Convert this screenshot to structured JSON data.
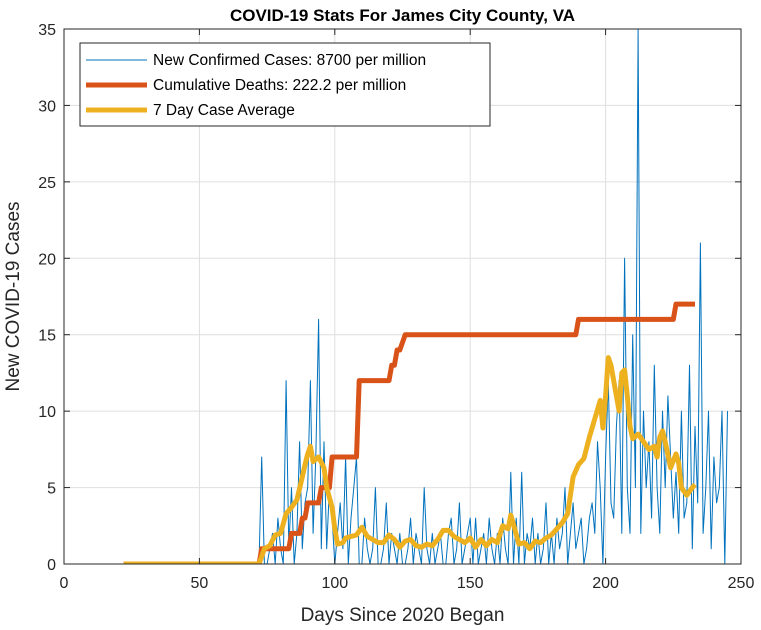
{
  "chart_data": {
    "type": "line",
    "title": "COVID-19 Stats For James City County, VA",
    "xlabel": "Days Since 2020 Began",
    "ylabel": "New COVID-19 Cases",
    "xlim": [
      0,
      250
    ],
    "ylim": [
      0,
      35
    ],
    "xticks": [
      0,
      50,
      100,
      150,
      200,
      250
    ],
    "yticks": [
      0,
      5,
      10,
      15,
      20,
      25,
      30,
      35
    ],
    "grid": true,
    "legend_position": "top-left",
    "series": [
      {
        "name": "New Confirmed Cases: 8700 per million",
        "color": "#0072BD",
        "line_width": "thin",
        "x_start": 22,
        "x_step": 1,
        "values": [
          0,
          0,
          0,
          0,
          0,
          0,
          0,
          0,
          0,
          0,
          0,
          0,
          0,
          0,
          0,
          0,
          0,
          0,
          0,
          0,
          0,
          0,
          0,
          0,
          0,
          0,
          0,
          0,
          0,
          0,
          0,
          0,
          0,
          0,
          0,
          0,
          0,
          0,
          0,
          0,
          0,
          0,
          0,
          0,
          0,
          0,
          0,
          0,
          0,
          0,
          0,
          7,
          0,
          0,
          1,
          2,
          0,
          3,
          1,
          0,
          12,
          1,
          5,
          0,
          2,
          8,
          1,
          4,
          5,
          12,
          2,
          7,
          16,
          1,
          8,
          1,
          5,
          3,
          0,
          2,
          4,
          1,
          7,
          0,
          3,
          5,
          7,
          0,
          0,
          3,
          1,
          0,
          1,
          5,
          0,
          0,
          1,
          4,
          0,
          2,
          1,
          0,
          2,
          0,
          0,
          1,
          3,
          0,
          2,
          1,
          0,
          5,
          1,
          0,
          2,
          0,
          1,
          2,
          0,
          0,
          2,
          3,
          0,
          1,
          4,
          0,
          1,
          2,
          3,
          0,
          3,
          0,
          1,
          2,
          0,
          3,
          1,
          0,
          2,
          0,
          3,
          1,
          0,
          6,
          0,
          3,
          0,
          6,
          0,
          2,
          1,
          3,
          0,
          2,
          0,
          1,
          4,
          0,
          2,
          0,
          3,
          1,
          2,
          5,
          0,
          2,
          4,
          1,
          2,
          3,
          0,
          1,
          3,
          4,
          2,
          8,
          5,
          0,
          7,
          12,
          4,
          3,
          9,
          12,
          2,
          20,
          5,
          2,
          15,
          5,
          35,
          2,
          10,
          5,
          8,
          3,
          13,
          5,
          2,
          10,
          5,
          11,
          7,
          3,
          6,
          2,
          10,
          3,
          4,
          13,
          1,
          9,
          4,
          21,
          2,
          5,
          10,
          1,
          7,
          4,
          5,
          10,
          0,
          10
        ]
      },
      {
        "name": "Cumulative Deaths: 222.2 per million",
        "color": "#D95319",
        "line_width": "thick",
        "steps": [
          [
            22,
            0
          ],
          [
            72,
            0
          ],
          [
            73,
            1
          ],
          [
            83,
            1
          ],
          [
            84,
            2
          ],
          [
            87,
            2
          ],
          [
            88,
            3
          ],
          [
            89,
            3
          ],
          [
            90,
            4
          ],
          [
            94,
            4
          ],
          [
            95,
            5
          ],
          [
            98,
            5
          ],
          [
            99,
            7
          ],
          [
            108,
            7
          ],
          [
            109,
            12
          ],
          [
            120,
            12
          ],
          [
            121,
            13
          ],
          [
            122,
            13
          ],
          [
            123,
            14
          ],
          [
            124,
            14
          ],
          [
            125,
            14.5
          ],
          [
            126,
            15
          ],
          [
            189,
            15
          ],
          [
            190,
            16
          ],
          [
            225,
            16
          ],
          [
            226,
            17
          ],
          [
            233,
            17
          ]
        ]
      },
      {
        "name": "7 Day Case Average",
        "color": "#EDB120",
        "line_width": "thick",
        "points": [
          [
            22,
            0
          ],
          [
            72,
            0
          ],
          [
            74,
            1
          ],
          [
            76,
            1.2
          ],
          [
            78,
            1.9
          ],
          [
            80,
            2.0
          ],
          [
            82,
            3.3
          ],
          [
            84,
            3.7
          ],
          [
            86,
            4.2
          ],
          [
            88,
            5.7
          ],
          [
            89,
            6.5
          ],
          [
            90,
            7.2
          ],
          [
            91,
            7.7
          ],
          [
            92,
            6.7
          ],
          [
            94,
            7.0
          ],
          [
            96,
            6.3
          ],
          [
            97,
            5.0
          ],
          [
            99,
            3.7
          ],
          [
            100,
            2.3
          ],
          [
            101,
            1.3
          ],
          [
            103,
            1.4
          ],
          [
            104,
            1.7
          ],
          [
            106,
            1.8
          ],
          [
            108,
            1.9
          ],
          [
            110,
            2.4
          ],
          [
            112,
            1.8
          ],
          [
            114,
            1.6
          ],
          [
            116,
            1.4
          ],
          [
            118,
            1.4
          ],
          [
            120,
            1.9
          ],
          [
            122,
            1.6
          ],
          [
            124,
            1.1
          ],
          [
            126,
            1.5
          ],
          [
            128,
            1.6
          ],
          [
            130,
            1.2
          ],
          [
            132,
            1.1
          ],
          [
            134,
            1.3
          ],
          [
            136,
            1.2
          ],
          [
            138,
            1.6
          ],
          [
            140,
            2.2
          ],
          [
            142,
            2.2
          ],
          [
            144,
            1.8
          ],
          [
            146,
            1.6
          ],
          [
            148,
            1.4
          ],
          [
            150,
            1.7
          ],
          [
            152,
            1.1
          ],
          [
            154,
            1.6
          ],
          [
            156,
            1.2
          ],
          [
            158,
            1.6
          ],
          [
            160,
            1.4
          ],
          [
            162,
            2.5
          ],
          [
            164,
            2.3
          ],
          [
            165,
            3.2
          ],
          [
            166,
            2.6
          ],
          [
            168,
            1.3
          ],
          [
            170,
            1.4
          ],
          [
            172,
            1.0
          ],
          [
            174,
            1.5
          ],
          [
            176,
            1.4
          ],
          [
            178,
            1.7
          ],
          [
            180,
            1.9
          ],
          [
            182,
            2.3
          ],
          [
            184,
            2.7
          ],
          [
            186,
            3.3
          ],
          [
            188,
            5.7
          ],
          [
            190,
            6.5
          ],
          [
            192,
            6.9
          ],
          [
            194,
            8.3
          ],
          [
            196,
            9.5
          ],
          [
            198,
            10.7
          ],
          [
            199,
            8.9
          ],
          [
            200,
            11.0
          ],
          [
            201,
            13.5
          ],
          [
            202,
            13.0
          ],
          [
            203,
            12.0
          ],
          [
            204,
            11.0
          ],
          [
            205,
            10.0
          ],
          [
            206,
            12.5
          ],
          [
            207,
            12.7
          ],
          [
            208,
            11.0
          ],
          [
            209,
            9.0
          ],
          [
            210,
            8.2
          ],
          [
            212,
            8.5
          ],
          [
            214,
            8.0
          ],
          [
            216,
            7.5
          ],
          [
            218,
            7.7
          ],
          [
            219,
            7.0
          ],
          [
            220,
            8.3
          ],
          [
            221,
            8.7
          ],
          [
            222,
            8.0
          ],
          [
            224,
            6.3
          ],
          [
            226,
            7.2
          ],
          [
            227,
            6.6
          ],
          [
            228,
            5.0
          ],
          [
            230,
            4.5
          ],
          [
            232,
            5.0
          ],
          [
            233,
            5.2
          ]
        ]
      }
    ]
  }
}
